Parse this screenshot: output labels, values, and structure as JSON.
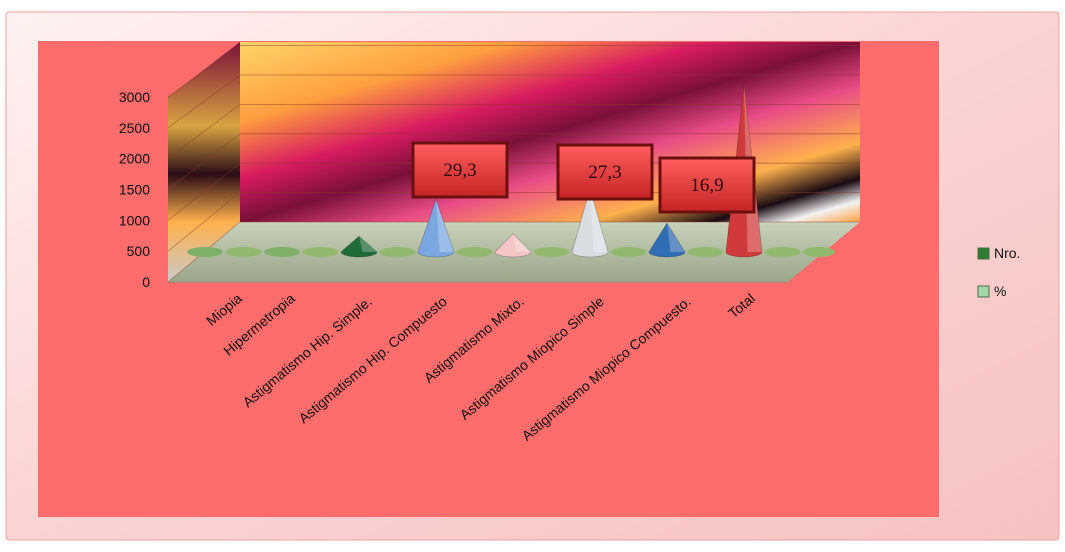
{
  "chart_data": {
    "type": "bar",
    "style": "3d-cone",
    "categories": [
      "Miopia",
      "Hipermetropia",
      "Astigmatismo Hip. Simple.",
      "Astigmatismo Hip. Compuesto",
      "Astigmatismo Mixto.",
      "Astigmatismo Miopico Simple",
      "Astigmatismo Miopico Compuesto.",
      "Total"
    ],
    "series": [
      {
        "name": "Nro.",
        "color": "#2e7d32",
        "values": [
          0,
          0,
          300,
          1000,
          350,
          1200,
          550,
          3200
        ]
      },
      {
        "name": "%",
        "color": "#a5d6a7",
        "values": [
          0,
          0,
          0,
          0,
          0,
          0,
          0,
          0
        ]
      }
    ],
    "cone_colors": [
      "#7fb069",
      "#7fb069",
      "#1f6b3a",
      "#7aa7e0",
      "#f4c6c6",
      "#d9dde2",
      "#2f6db5",
      "#d13a3a"
    ],
    "data_labels": [
      {
        "category_index": 3,
        "text": "29,3"
      },
      {
        "category_index": 5,
        "text": "27,3"
      },
      {
        "category_index": 6,
        "text": "16,9"
      }
    ],
    "ylim": [
      0,
      3000
    ],
    "yticks": [
      "0",
      "500",
      "1000",
      "1500",
      "2000",
      "2500",
      "3000"
    ],
    "title": "",
    "xlabel": "",
    "ylabel": "",
    "legend_position": "right",
    "grid": true
  },
  "colors": {
    "plot_area_bg": "#ff6f6f",
    "chart_area_bg": "#fbd3d3",
    "floor": "#b5bfa5",
    "wall_bands": [
      "#7a0f3a",
      "#d81b60",
      "#ff9f3f",
      "#ffd46a"
    ]
  }
}
